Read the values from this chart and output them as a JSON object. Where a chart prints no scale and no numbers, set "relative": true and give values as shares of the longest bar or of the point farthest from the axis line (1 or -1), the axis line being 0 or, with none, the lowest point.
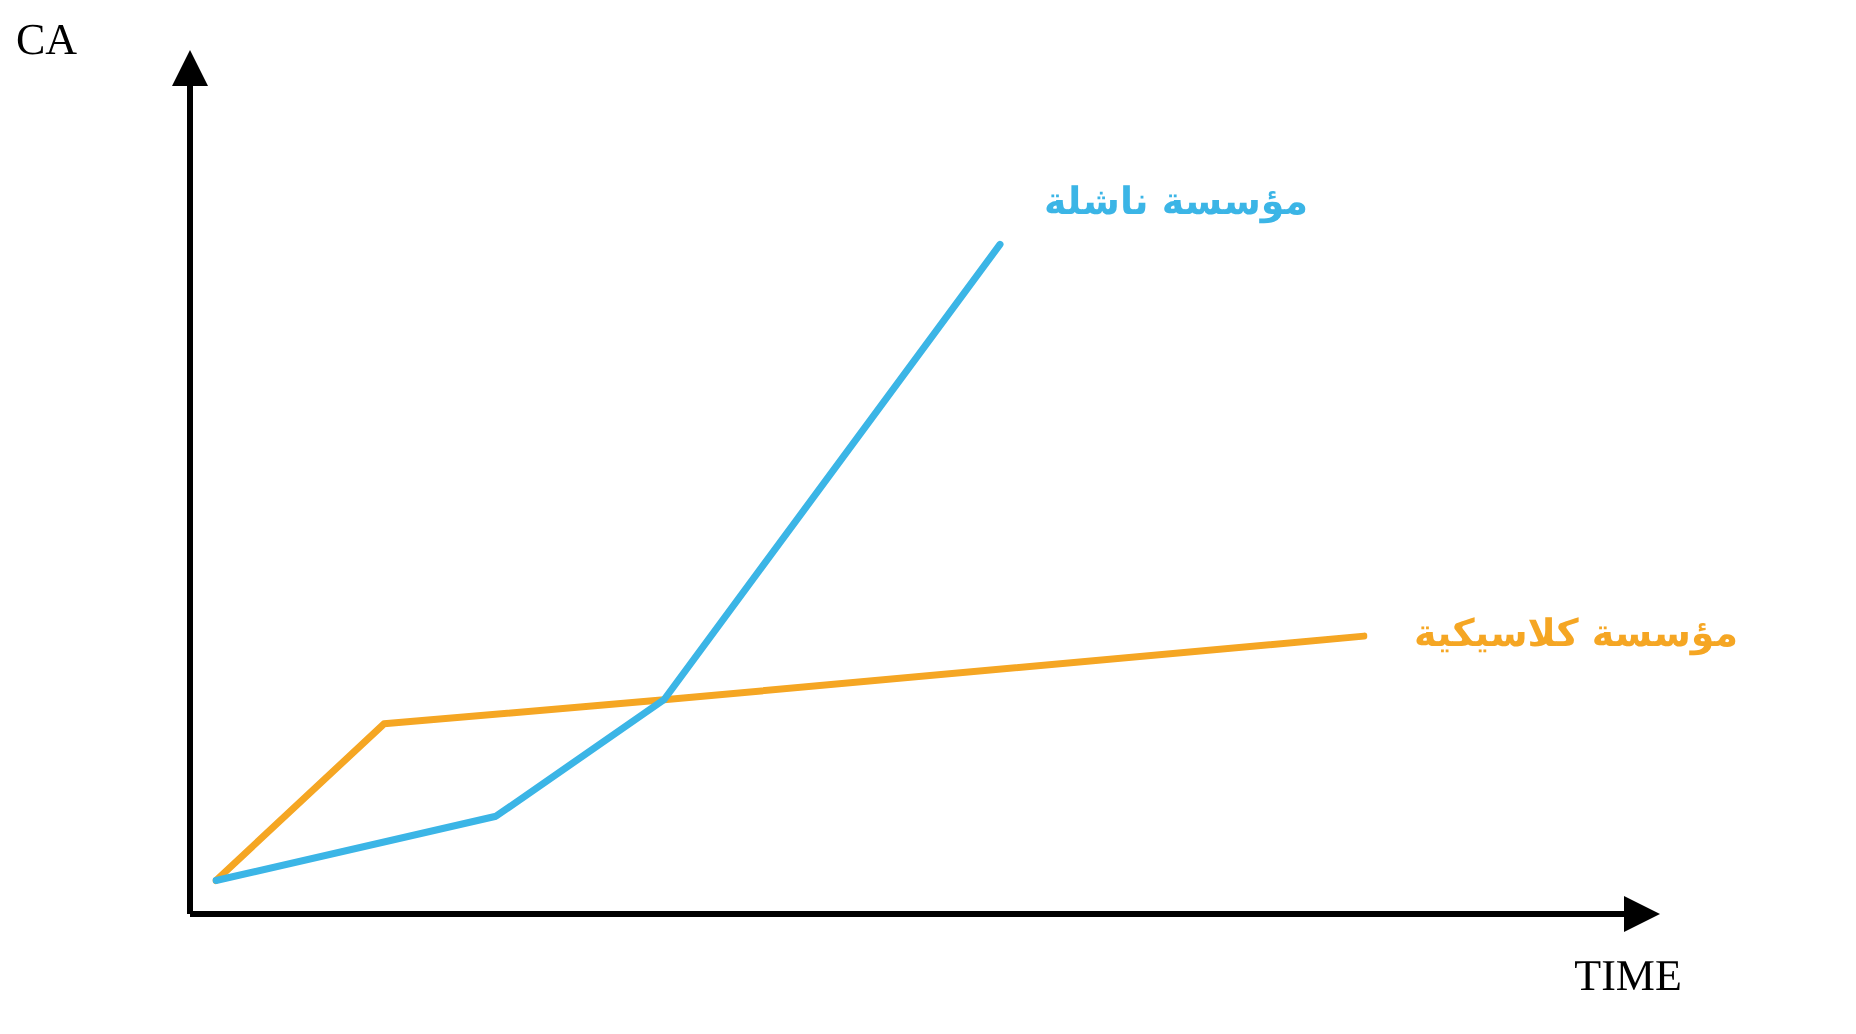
{
  "chart_data": {
    "type": "line",
    "relative": true,
    "xlabel": "TIME",
    "ylabel": "CA",
    "legend": false,
    "marker": "none",
    "line_style": "solid",
    "categories": [
      null,
      null,
      null,
      null,
      null,
      null,
      null,
      null,
      null,
      null,
      null,
      null,
      null,
      null,
      null,
      null,
      null,
      null,
      null,
      null,
      null,
      null,
      null,
      null,
      null,
      null,
      null,
      null,
      null,
      null,
      null,
      null,
      null,
      null,
      null,
      null,
      null,
      null,
      null,
      null,
      null,
      null
    ],
    "series": [
      {
        "name": "مؤسسة ناشلة",
        "color": "#3bb5e6",
        "values": [
          0.05,
          null,
          null,
          null,
          null,
          null,
          null,
          null,
          null,
          null,
          0.146,
          null,
          null,
          null,
          null,
          null,
          0.32,
          null,
          null,
          null,
          null,
          null,
          null,
          null,
          null,
          null,
          null,
          null,
          1,
          null,
          null,
          null,
          null,
          null,
          null,
          null,
          null,
          null,
          null,
          null,
          null,
          null
        ]
      },
      {
        "name": "مؤسسة كلاسيكية",
        "color": "#f5a623",
        "values": [
          0.05,
          null,
          null,
          null,
          null,
          null,
          0.284,
          null,
          null,
          null,
          null,
          null,
          null,
          null,
          null,
          null,
          0.32,
          null,
          null,
          null,
          null,
          null,
          null,
          null,
          null,
          null,
          null,
          null,
          null,
          null,
          null,
          null,
          null,
          null,
          null,
          null,
          null,
          null,
          null,
          null,
          null,
          0.415
        ]
      }
    ]
  }
}
